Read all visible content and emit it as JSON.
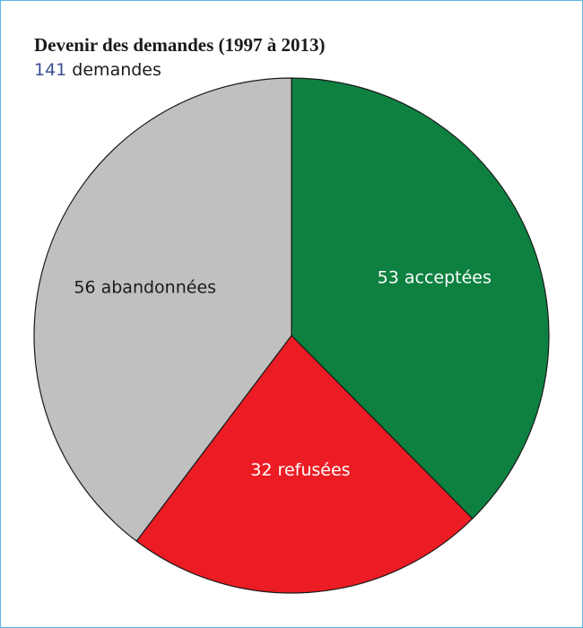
{
  "chart_data": {
    "type": "pie",
    "title": "Devenir des demandes (1997 à 2013)",
    "subtitle_count": "141",
    "subtitle_text": " demandes",
    "total": 141,
    "slices": [
      {
        "value": 53,
        "label": "53 acceptées",
        "color": "#0e8140",
        "text_color": "#ffffff"
      },
      {
        "value": 32,
        "label": "32 refusées",
        "color": "#ec1c24",
        "text_color": "#ffffff"
      },
      {
        "value": 56,
        "label": "56 abandonnées",
        "color": "#c0c0c0",
        "text_color": "#1a1a1a"
      }
    ]
  }
}
